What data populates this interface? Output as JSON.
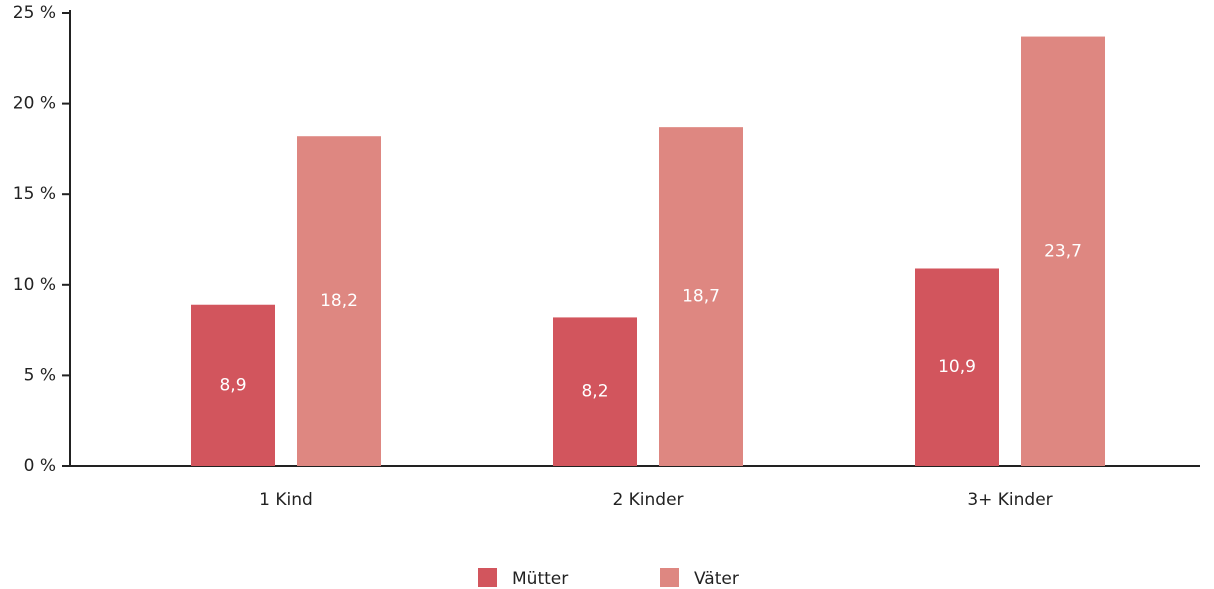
{
  "chart_data": {
    "type": "bar",
    "categories": [
      "1 Kind",
      "2 Kinder",
      "3+ Kinder"
    ],
    "series": [
      {
        "name": "Mütter",
        "color": "#d2555d",
        "values": [
          8.9,
          8.2,
          10.9
        ],
        "value_labels": [
          "8,9",
          "8,2",
          "10,9"
        ]
      },
      {
        "name": "Väter",
        "color": "#de8781",
        "values": [
          18.2,
          18.7,
          23.7
        ],
        "value_labels": [
          "18,2",
          "18,7",
          "23,7"
        ]
      }
    ],
    "ylim": [
      0,
      25
    ],
    "yticks": [
      {
        "value": 0,
        "label": "0 %"
      },
      {
        "value": 5,
        "label": "5 %"
      },
      {
        "value": 10,
        "label": "10 %"
      },
      {
        "value": 15,
        "label": "15 %"
      },
      {
        "value": 20,
        "label": "20 %"
      },
      {
        "value": 25,
        "label": "25 %"
      }
    ],
    "grid": false,
    "legend": "bottom"
  }
}
